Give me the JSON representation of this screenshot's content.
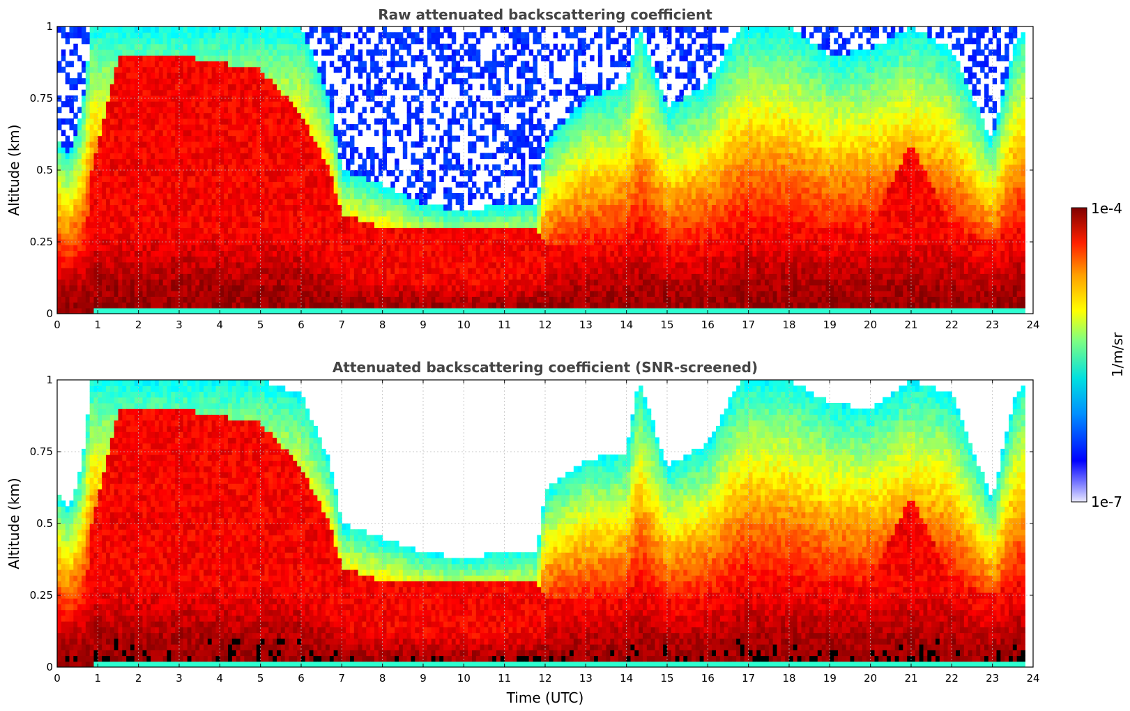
{
  "chart_data": [
    {
      "type": "heatmap",
      "title": "Raw attenuated backscattering coefficient",
      "xlabel": "",
      "ylabel": "Altitude (km)",
      "xlim": [
        0,
        24
      ],
      "ylim": [
        0,
        1
      ],
      "x_ticks": [
        "0",
        "1",
        "2",
        "3",
        "4",
        "5",
        "6",
        "7",
        "8",
        "9",
        "10",
        "11",
        "12",
        "13",
        "14",
        "15",
        "16",
        "17",
        "18",
        "19",
        "20",
        "21",
        "22",
        "23",
        "24"
      ],
      "y_ticks": [
        "0",
        "0.25",
        "0.5",
        "0.75",
        "1"
      ],
      "grid": true,
      "colormap": "jet",
      "screened": false,
      "profile": [
        {
          "x": 0.0,
          "top": 0.62,
          "core": 0.12
        },
        {
          "x": 0.3,
          "top": 0.55,
          "core": 0.12
        },
        {
          "x": 0.6,
          "top": 0.7,
          "core": 0.12
        },
        {
          "x": 0.85,
          "top": 1.0,
          "core": 0.5
        },
        {
          "x": 1.5,
          "top": 1.0,
          "core": 0.9
        },
        {
          "x": 3.0,
          "top": 1.0,
          "core": 0.9
        },
        {
          "x": 5.0,
          "top": 1.0,
          "core": 0.85
        },
        {
          "x": 6.0,
          "top": 1.0,
          "core": 0.7
        },
        {
          "x": 6.7,
          "top": 0.75,
          "core": 0.5
        },
        {
          "x": 7.0,
          "top": 0.5,
          "core": 0.35
        },
        {
          "x": 8.0,
          "top": 0.45,
          "core": 0.3
        },
        {
          "x": 9.0,
          "top": 0.38,
          "core": 0.3
        },
        {
          "x": 10.0,
          "top": 0.36,
          "core": 0.3
        },
        {
          "x": 11.0,
          "top": 0.38,
          "core": 0.3
        },
        {
          "x": 11.8,
          "top": 0.38,
          "core": 0.3
        },
        {
          "x": 12.0,
          "top": 0.6,
          "core": 0.25
        },
        {
          "x": 13.0,
          "top": 0.75,
          "core": 0.25
        },
        {
          "x": 14.0,
          "top": 0.8,
          "core": 0.25
        },
        {
          "x": 14.3,
          "top": 1.0,
          "core": 0.3
        },
        {
          "x": 15.0,
          "top": 0.72,
          "core": 0.25
        },
        {
          "x": 16.0,
          "top": 0.8,
          "core": 0.25
        },
        {
          "x": 16.8,
          "top": 1.0,
          "core": 0.3
        },
        {
          "x": 18.0,
          "top": 1.0,
          "core": 0.3
        },
        {
          "x": 19.0,
          "top": 0.9,
          "core": 0.3
        },
        {
          "x": 20.0,
          "top": 0.92,
          "core": 0.3
        },
        {
          "x": 21.0,
          "top": 1.0,
          "core": 0.6
        },
        {
          "x": 22.0,
          "top": 0.92,
          "core": 0.3
        },
        {
          "x": 23.0,
          "top": 0.6,
          "core": 0.25
        },
        {
          "x": 23.5,
          "top": 0.92,
          "core": 0.3
        },
        {
          "x": 23.8,
          "top": 1.0,
          "core": 0.3
        }
      ]
    },
    {
      "type": "heatmap",
      "title": "Attenuated backscattering coefficient (SNR-screened)",
      "xlabel": "Time (UTC)",
      "ylabel": "Altitude (km)",
      "xlim": [
        0,
        24
      ],
      "ylim": [
        0,
        1
      ],
      "x_ticks": [
        "0",
        "1",
        "2",
        "3",
        "4",
        "5",
        "6",
        "7",
        "8",
        "9",
        "10",
        "11",
        "12",
        "13",
        "14",
        "15",
        "16",
        "17",
        "18",
        "19",
        "20",
        "21",
        "22",
        "23",
        "24"
      ],
      "y_ticks": [
        "0",
        "0.25",
        "0.5",
        "0.75",
        "1"
      ],
      "grid": true,
      "colormap": "jet",
      "screened": true,
      "profile": [
        {
          "x": 0.0,
          "top": 0.62,
          "core": 0.12
        },
        {
          "x": 0.3,
          "top": 0.55,
          "core": 0.12
        },
        {
          "x": 0.6,
          "top": 0.7,
          "core": 0.12
        },
        {
          "x": 0.85,
          "top": 1.0,
          "core": 0.5
        },
        {
          "x": 1.5,
          "top": 1.0,
          "core": 0.9
        },
        {
          "x": 3.0,
          "top": 1.0,
          "core": 0.9
        },
        {
          "x": 5.0,
          "top": 1.0,
          "core": 0.85
        },
        {
          "x": 6.0,
          "top": 0.95,
          "core": 0.7
        },
        {
          "x": 6.7,
          "top": 0.72,
          "core": 0.5
        },
        {
          "x": 7.0,
          "top": 0.5,
          "core": 0.35
        },
        {
          "x": 8.0,
          "top": 0.45,
          "core": 0.3
        },
        {
          "x": 9.0,
          "top": 0.4,
          "core": 0.3
        },
        {
          "x": 10.0,
          "top": 0.38,
          "core": 0.3
        },
        {
          "x": 11.0,
          "top": 0.4,
          "core": 0.3
        },
        {
          "x": 11.8,
          "top": 0.4,
          "core": 0.3
        },
        {
          "x": 12.0,
          "top": 0.62,
          "core": 0.25
        },
        {
          "x": 13.0,
          "top": 0.72,
          "core": 0.25
        },
        {
          "x": 14.0,
          "top": 0.75,
          "core": 0.25
        },
        {
          "x": 14.3,
          "top": 1.0,
          "core": 0.3
        },
        {
          "x": 15.0,
          "top": 0.7,
          "core": 0.25
        },
        {
          "x": 16.0,
          "top": 0.78,
          "core": 0.25
        },
        {
          "x": 16.8,
          "top": 1.0,
          "core": 0.3
        },
        {
          "x": 18.0,
          "top": 1.0,
          "core": 0.3
        },
        {
          "x": 19.0,
          "top": 0.92,
          "core": 0.3
        },
        {
          "x": 20.0,
          "top": 0.9,
          "core": 0.3
        },
        {
          "x": 21.0,
          "top": 1.0,
          "core": 0.6
        },
        {
          "x": 22.0,
          "top": 0.95,
          "core": 0.3
        },
        {
          "x": 23.0,
          "top": 0.58,
          "core": 0.25
        },
        {
          "x": 23.5,
          "top": 0.92,
          "core": 0.3
        },
        {
          "x": 23.8,
          "top": 1.0,
          "core": 0.3
        }
      ]
    }
  ],
  "colorbar": {
    "label": "1/m/sr",
    "max_label": "1e-4",
    "min_label": "1e-7",
    "range": [
      1e-07,
      0.0001
    ],
    "scale": "log"
  }
}
